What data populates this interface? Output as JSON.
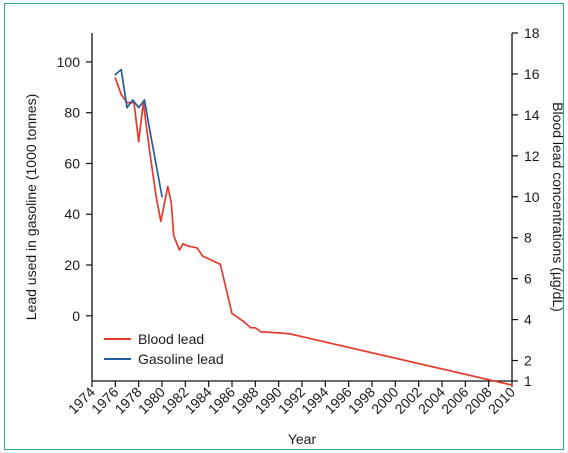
{
  "chart_data": {
    "type": "line",
    "xlabel": "Year",
    "ylabel_left": "Lead used in gasoline (1000 tonnes)",
    "ylabel_right": "Blood lead concentrations (µg/dL)",
    "xlim": [
      1974,
      2010
    ],
    "ylim_left": [
      -25.7,
      111.4
    ],
    "ylim_right": [
      1,
      18
    ],
    "x_ticks": [
      "1974",
      "1976",
      "1978",
      "1980",
      "1982",
      "1984",
      "1986",
      "1988",
      "1990",
      "1992",
      "1994",
      "1996",
      "1998",
      "2000",
      "2002",
      "2004",
      "2006",
      "2008",
      "2010"
    ],
    "y_left_ticks": [
      "0",
      "20",
      "40",
      "60",
      "80",
      "100"
    ],
    "y_right_ticks": [
      "1",
      "2",
      "4",
      "6",
      "8",
      "10",
      "12",
      "14",
      "16",
      "18"
    ],
    "legend_position": "bottom-left",
    "series": [
      {
        "name": "Blood lead",
        "axis": "right",
        "color": "#e8392b",
        "x": [
          1976.0,
          1976.5,
          1977.0,
          1977.6,
          1978.0,
          1978.4,
          1979.0,
          1979.5,
          1979.9,
          1980.5,
          1980.8,
          1981.0,
          1981.5,
          1981.8,
          1982.2,
          1983.0,
          1983.5,
          1985.0,
          1986.0,
          1987.0,
          1987.6,
          1988.0,
          1988.5,
          1990.0,
          1991.0,
          2010.0
        ],
        "y": [
          15.8,
          15.0,
          14.6,
          14.6,
          12.7,
          14.6,
          12.0,
          10.0,
          8.8,
          10.5,
          9.7,
          8.1,
          7.4,
          7.7,
          7.6,
          7.5,
          7.1,
          6.7,
          4.3,
          3.9,
          3.6,
          3.6,
          3.4,
          3.35,
          3.3,
          0.8
        ]
      },
      {
        "name": "Gasoline lead",
        "axis": "left",
        "color": "#1f5f9e",
        "x": [
          1976.0,
          1976.5,
          1977.0,
          1977.5,
          1978.0,
          1978.5,
          1979.0,
          1980.0
        ],
        "y": [
          95,
          97,
          82,
          85,
          82,
          85,
          72,
          47
        ]
      }
    ]
  }
}
